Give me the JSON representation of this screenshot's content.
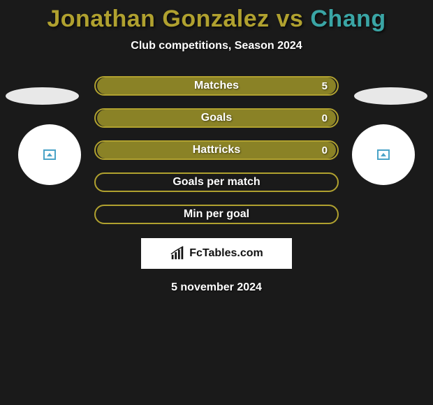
{
  "header": {
    "title_left": "Jonathan Gonzalez",
    "title_vs": " vs ",
    "title_right": "Chang",
    "color_left": "#b0a12f",
    "color_right": "#3aa5a5",
    "subtitle": "Club competitions, Season 2024"
  },
  "styling": {
    "background": "#1a1a1a",
    "row_border": "#b0a12f",
    "row_fill_1": "#8a8226",
    "row_fill_2": "#8a8226",
    "text_color": "#ffffff",
    "circle_bg": "#ffffff",
    "ellipse_bg": "#e8e8e8",
    "icon_left_color": "#4aa3c7",
    "icon_right_color": "#4aa3c7"
  },
  "stats": {
    "rows": [
      {
        "label": "Matches",
        "value_right": "5",
        "filled": true
      },
      {
        "label": "Goals",
        "value_right": "0",
        "filled": true
      },
      {
        "label": "Hattricks",
        "value_right": "0",
        "filled": true
      },
      {
        "label": "Goals per match",
        "value_right": "",
        "filled": false
      },
      {
        "label": "Min per goal",
        "value_right": "",
        "filled": false
      }
    ]
  },
  "footer": {
    "brand": "FcTables.com",
    "date": "5 november 2024"
  }
}
